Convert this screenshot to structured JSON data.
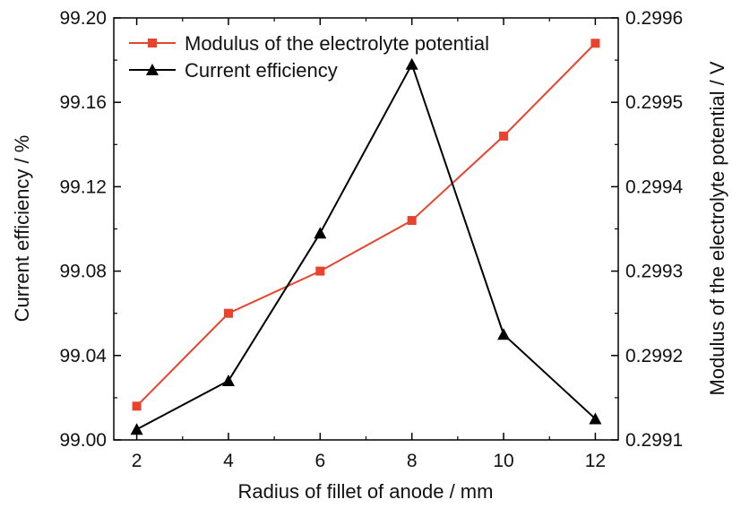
{
  "chart_data": {
    "type": "line",
    "x": [
      2,
      4,
      6,
      8,
      10,
      12
    ],
    "xlabel": "Radius of fillet of anode / mm",
    "xlim": [
      1.5,
      12.5
    ],
    "xticks": [
      "2",
      "4",
      "6",
      "8",
      "10",
      "12"
    ],
    "y_left": {
      "label": "Current efficiency / %",
      "lim": [
        99.0,
        99.2
      ],
      "ticks": [
        "99.00",
        "99.04",
        "99.08",
        "99.12",
        "99.16",
        "99.20"
      ]
    },
    "y_right": {
      "label": "Modulus of the electrolyte potential / V",
      "lim": [
        0.2991,
        0.2996
      ],
      "ticks": [
        "0.2991",
        "0.2992",
        "0.2993",
        "0.2994",
        "0.2995",
        "0.2996"
      ]
    },
    "series": [
      {
        "name": "Modulus of the electrolyte potential",
        "axis": "right",
        "marker": "square",
        "color": "#e8432d",
        "values": [
          0.29914,
          0.29925,
          0.2993,
          0.29936,
          0.29946,
          0.29957
        ]
      },
      {
        "name": "Current efficiency",
        "axis": "left",
        "marker": "triangle",
        "color": "#000000",
        "values": [
          99.005,
          99.028,
          99.098,
          99.178,
          99.05,
          99.01
        ]
      }
    ],
    "legend_position": "top-left",
    "grid": false
  }
}
